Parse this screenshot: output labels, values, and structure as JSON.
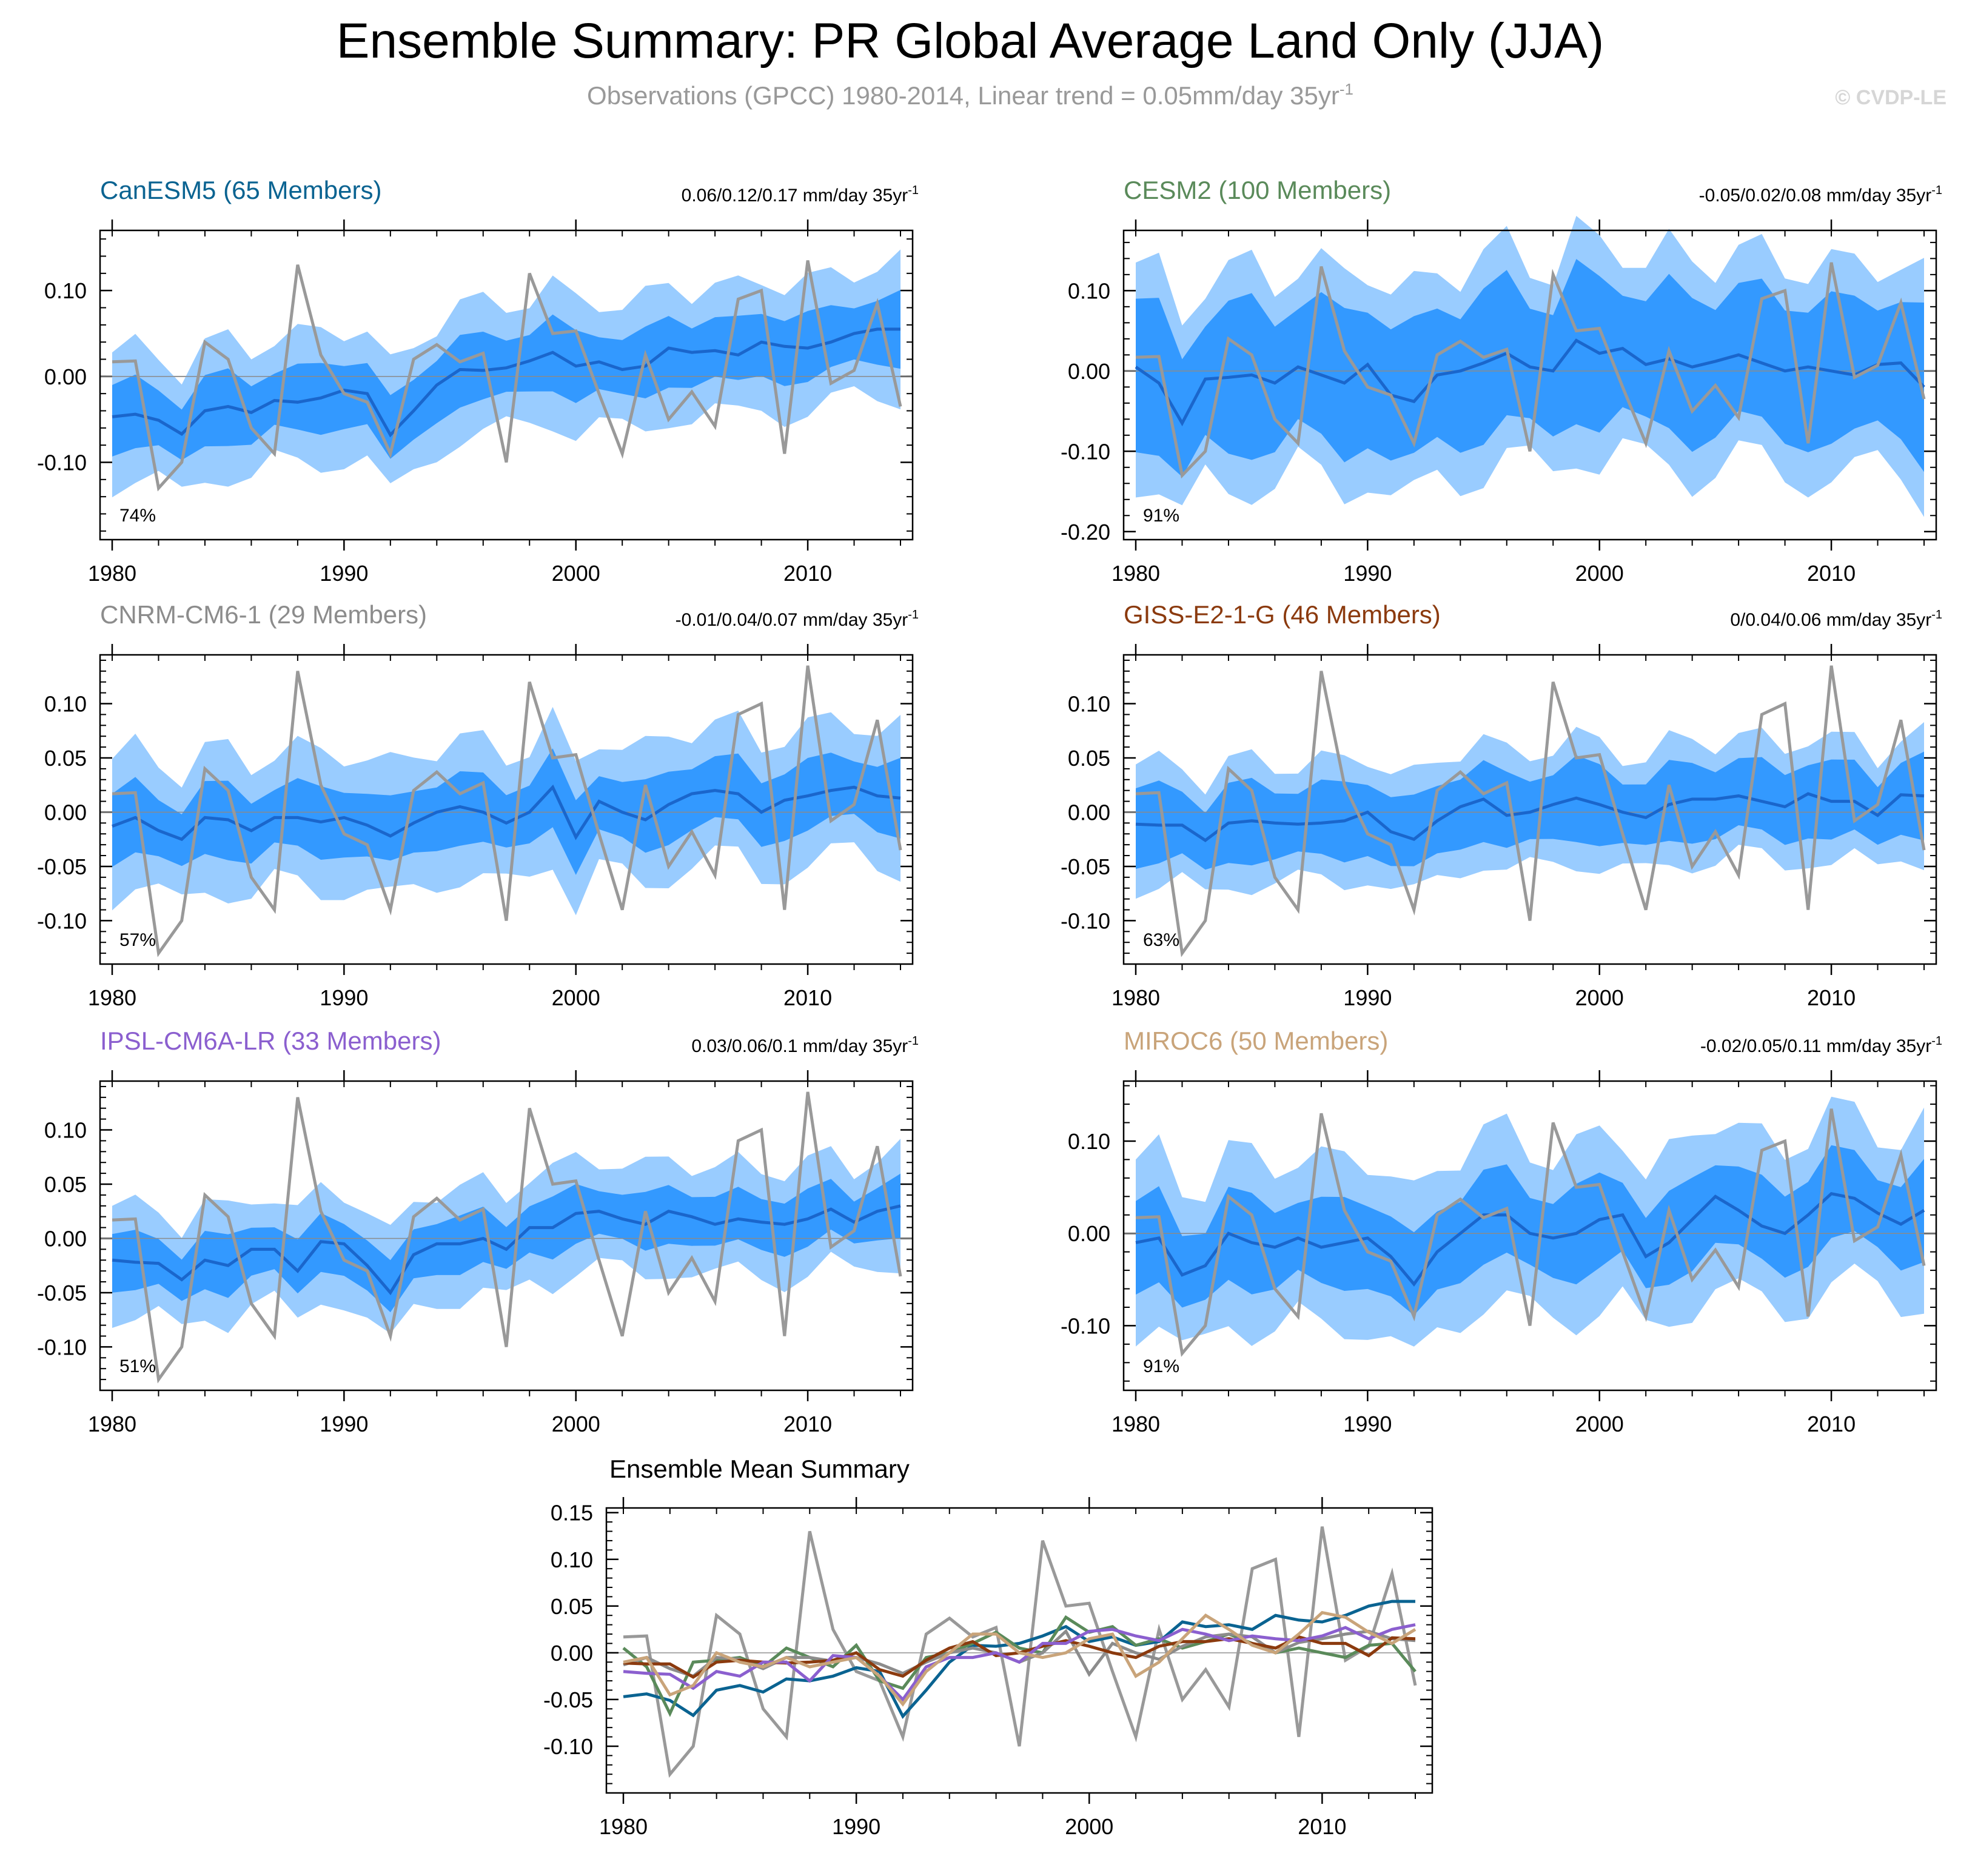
{
  "title": "Ensemble Summary: PR Global Average Land Only (JJA)",
  "subtitle": "Observations (GPCC) 1980-2014, Linear trend = 0.05mm/day 35yr",
  "subtitle_sup": "-1",
  "watermark": "© CVDP-LE",
  "colors": {
    "obs": "#999999",
    "band_outer": "#99ccff",
    "band_inner": "#3399ff",
    "ens_mean": "#1a66cc",
    "frame": "#000000",
    "zero_line": "#aaaaaa"
  },
  "chart_data": {
    "type": "line",
    "years": [
      1980,
      1981,
      1982,
      1983,
      1984,
      1985,
      1986,
      1987,
      1988,
      1989,
      1990,
      1991,
      1992,
      1993,
      1994,
      1995,
      1996,
      1997,
      1998,
      1999,
      2000,
      2001,
      2002,
      2003,
      2004,
      2005,
      2006,
      2007,
      2008,
      2009,
      2010,
      2011,
      2012,
      2013,
      2014
    ],
    "observations": {
      "name": "Observations (GPCC)",
      "values": [
        0.017,
        0.018,
        -0.13,
        -0.1,
        0.04,
        0.02,
        -0.06,
        -0.09,
        0.13,
        0.025,
        -0.02,
        -0.03,
        -0.09,
        0.02,
        0.037,
        0.017,
        0.027,
        -0.1,
        0.12,
        0.05,
        0.053,
        -0.02,
        -0.09,
        0.025,
        -0.05,
        -0.018,
        -0.058,
        0.09,
        0.1,
        -0.09,
        0.135,
        -0.008,
        0.007,
        0.085,
        -0.035
      ]
    },
    "xticks": [
      1980,
      1990,
      2000,
      2010
    ],
    "panels": [
      {
        "model": "CanESM5",
        "members": "65 Members",
        "label": "CanESM5 (65 Members)",
        "color": "#0a6391",
        "trend": "0.06/0.12/0.17 mm/day 35yr",
        "trend_sup": "-1",
        "pct": "74%",
        "ylim": [
          -0.19,
          0.17
        ],
        "yticks": [
          -0.1,
          0.0,
          0.1
        ],
        "ytick_labels": [
          "-0.10",
          "0.00",
          "0.10"
        ],
        "mean": [
          -0.047,
          -0.044,
          -0.051,
          -0.067,
          -0.04,
          -0.035,
          -0.042,
          -0.028,
          -0.03,
          -0.025,
          -0.016,
          -0.02,
          -0.068,
          -0.04,
          -0.01,
          0.008,
          0.007,
          0.01,
          0.018,
          0.028,
          0.012,
          0.017,
          0.008,
          0.012,
          0.033,
          0.028,
          0.03,
          0.025,
          0.04,
          0.035,
          0.033,
          0.04,
          0.05,
          0.055,
          0.055
        ],
        "inner_half": 0.037,
        "outer_half": 0.075
      },
      {
        "model": "CESM2",
        "members": "100 Members",
        "label": "CESM2 (100 Members)",
        "color": "#5a8a5a",
        "trend": "-0.05/0.02/0.08 mm/day 35yr",
        "trend_sup": "-1",
        "pct": "91%",
        "ylim": [
          -0.21,
          0.175
        ],
        "yticks": [
          -0.2,
          -0.1,
          0.0,
          0.1
        ],
        "ytick_labels": [
          "-0.20",
          "-0.10",
          "0.00",
          "0.10"
        ],
        "mean": [
          0.005,
          -0.015,
          -0.065,
          -0.01,
          -0.008,
          -0.005,
          -0.015,
          0.005,
          -0.005,
          -0.015,
          0.008,
          -0.03,
          -0.038,
          -0.005,
          0.0,
          0.01,
          0.022,
          0.005,
          0.0,
          0.038,
          0.022,
          0.028,
          0.008,
          0.015,
          0.005,
          0.012,
          0.02,
          0.01,
          0.0,
          0.005,
          0.0,
          -0.005,
          0.008,
          0.01,
          -0.02
        ],
        "inner_half": 0.085,
        "outer_half": 0.13
      },
      {
        "model": "CNRM-CM6-1",
        "members": "29 Members",
        "label": "CNRM-CM6-1 (29 Members)",
        "color": "#8c8c8c",
        "trend": "-0.01/0.04/0.07 mm/day 35yr",
        "trend_sup": "-1",
        "pct": "57%",
        "ylim": [
          -0.14,
          0.145
        ],
        "yticks": [
          -0.1,
          -0.05,
          0.0,
          0.05,
          0.1
        ],
        "ytick_labels": [
          "-0.10",
          "-0.05",
          "0.00",
          "0.05",
          "0.10"
        ],
        "mean": [
          -0.013,
          -0.005,
          -0.017,
          -0.025,
          -0.005,
          -0.007,
          -0.017,
          -0.005,
          -0.005,
          -0.009,
          -0.005,
          -0.012,
          -0.022,
          -0.01,
          0.0,
          0.005,
          0.0,
          -0.01,
          0.0,
          0.023,
          -0.023,
          0.01,
          0.0,
          -0.007,
          0.007,
          0.017,
          0.02,
          0.017,
          0.0,
          0.011,
          0.015,
          0.02,
          0.023,
          0.015,
          0.013
        ],
        "inner_half": 0.03,
        "outer_half": 0.062
      },
      {
        "model": "GISS-E2-1-G",
        "members": "46 Members",
        "label": "GISS-E2-1-G (46 Members)",
        "color": "#8b3a0e",
        "trend": "0/0.04/0.06 mm/day 35yr",
        "trend_sup": "-1",
        "pct": "63%",
        "ylim": [
          -0.14,
          0.145
        ],
        "yticks": [
          -0.1,
          -0.05,
          0.0,
          0.05,
          0.1
        ],
        "ytick_labels": [
          "-0.10",
          "-0.05",
          "0.00",
          "0.05",
          "0.10"
        ],
        "mean": [
          -0.011,
          -0.012,
          -0.012,
          -0.026,
          -0.01,
          -0.008,
          -0.01,
          -0.011,
          -0.01,
          -0.008,
          0.0,
          -0.018,
          -0.025,
          -0.008,
          0.005,
          0.012,
          -0.003,
          0.0,
          0.007,
          0.013,
          0.007,
          0.0,
          -0.005,
          0.007,
          0.012,
          0.012,
          0.015,
          0.01,
          0.005,
          0.017,
          0.01,
          0.01,
          -0.003,
          0.016,
          0.015
        ],
        "inner_half": 0.033,
        "outer_half": 0.055
      },
      {
        "model": "IPSL-CM6A-LR",
        "members": "33 Members",
        "label": "IPSL-CM6A-LR (33 Members)",
        "color": "#8b5fcf",
        "trend": "0.03/0.06/0.1 mm/day 35yr",
        "trend_sup": "-1",
        "pct": "51%",
        "ylim": [
          -0.14,
          0.145
        ],
        "yticks": [
          -0.1,
          -0.05,
          0.0,
          0.05,
          0.1
        ],
        "ytick_labels": [
          "-0.10",
          "-0.05",
          "0.00",
          "0.05",
          "0.10"
        ],
        "mean": [
          -0.02,
          -0.022,
          -0.023,
          -0.038,
          -0.02,
          -0.025,
          -0.01,
          -0.01,
          -0.03,
          -0.003,
          -0.005,
          -0.025,
          -0.05,
          -0.015,
          -0.005,
          -0.005,
          0.0,
          -0.01,
          0.01,
          0.01,
          0.023,
          0.025,
          0.018,
          0.013,
          0.025,
          0.02,
          0.013,
          0.018,
          0.015,
          0.013,
          0.018,
          0.027,
          0.015,
          0.025,
          0.03
        ],
        "inner_half": 0.024,
        "outer_half": 0.05
      },
      {
        "model": "MIROC6",
        "members": "50 Members",
        "label": "MIROC6 (50 Members)",
        "color": "#c9a47a",
        "trend": "-0.02/0.05/0.11 mm/day 35yr",
        "trend_sup": "-1",
        "pct": "91%",
        "ylim": [
          -0.17,
          0.165
        ],
        "yticks": [
          -0.1,
          0.0,
          0.1
        ],
        "ytick_labels": [
          "-0.10",
          "0.00",
          "0.10"
        ],
        "mean": [
          -0.01,
          -0.005,
          -0.045,
          -0.035,
          0.0,
          -0.01,
          -0.015,
          -0.005,
          -0.015,
          -0.01,
          -0.005,
          -0.025,
          -0.055,
          -0.02,
          0.0,
          0.02,
          0.02,
          0.0,
          -0.005,
          0.0,
          0.015,
          0.02,
          -0.025,
          -0.01,
          0.015,
          0.04,
          0.025,
          0.008,
          0.0,
          0.02,
          0.043,
          0.038,
          0.022,
          0.01,
          0.025
        ],
        "inner_half": 0.045,
        "outer_half": 0.09
      }
    ],
    "summary": {
      "title": "Ensemble Mean Summary",
      "ylim": [
        -0.15,
        0.155
      ],
      "yticks": [
        -0.1,
        -0.05,
        0.0,
        0.05,
        0.1,
        0.15
      ],
      "ytick_labels": [
        "-0.10",
        "-0.05",
        "0.00",
        "0.05",
        "0.10",
        "0.15"
      ]
    }
  }
}
